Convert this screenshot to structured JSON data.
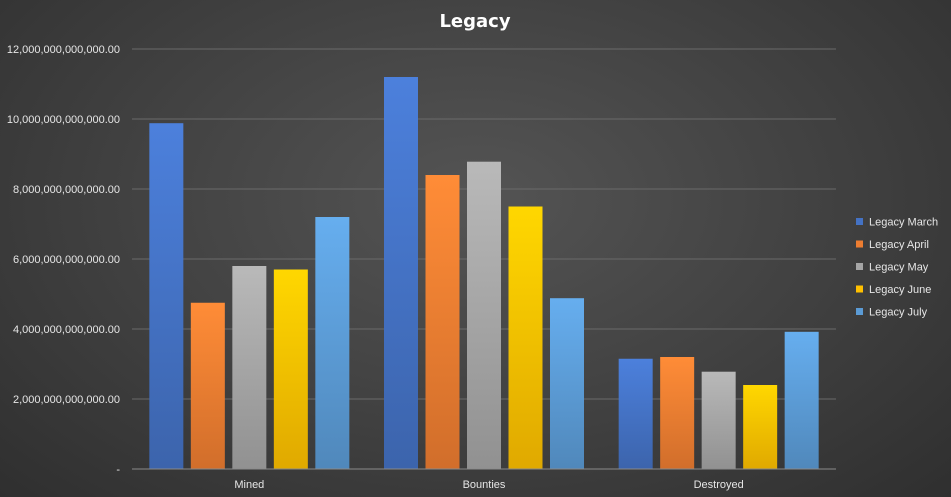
{
  "chart_data": {
    "type": "bar",
    "title": "Legacy",
    "xlabel": "",
    "ylabel": "",
    "categories": [
      "Mined",
      "Bounties",
      "Destroyed"
    ],
    "series": [
      {
        "name": "Legacy March",
        "color": "#4472C4",
        "values": [
          9880000000000,
          11200000000000,
          3150000000000
        ]
      },
      {
        "name": "Legacy April",
        "color": "#ED7D31",
        "values": [
          4750000000000,
          8400000000000,
          3200000000000
        ]
      },
      {
        "name": "Legacy May",
        "color": "#A5A5A5",
        "values": [
          5800000000000,
          8780000000000,
          2780000000000
        ]
      },
      {
        "name": "Legacy June",
        "color": "#FFC000",
        "values": [
          5700000000000,
          7500000000000,
          2400000000000
        ]
      },
      {
        "name": "Legacy July",
        "color": "#5B9BD5",
        "values": [
          7200000000000,
          4880000000000,
          3920000000000
        ]
      }
    ],
    "ylim": [
      0,
      12000000000000
    ],
    "y_ticks": [
      {
        "value": 0,
        "label": "-"
      },
      {
        "value": 2000000000000,
        "label": "2,000,000,000,000.00"
      },
      {
        "value": 4000000000000,
        "label": "4,000,000,000,000.00"
      },
      {
        "value": 6000000000000,
        "label": "6,000,000,000,000.00"
      },
      {
        "value": 8000000000000,
        "label": "8,000,000,000,000.00"
      },
      {
        "value": 10000000000000,
        "label": "10,000,000,000,000.00"
      },
      {
        "value": 12000000000000,
        "label": "12,000,000,000,000.00"
      }
    ],
    "grid": true,
    "legend_position": "right"
  }
}
